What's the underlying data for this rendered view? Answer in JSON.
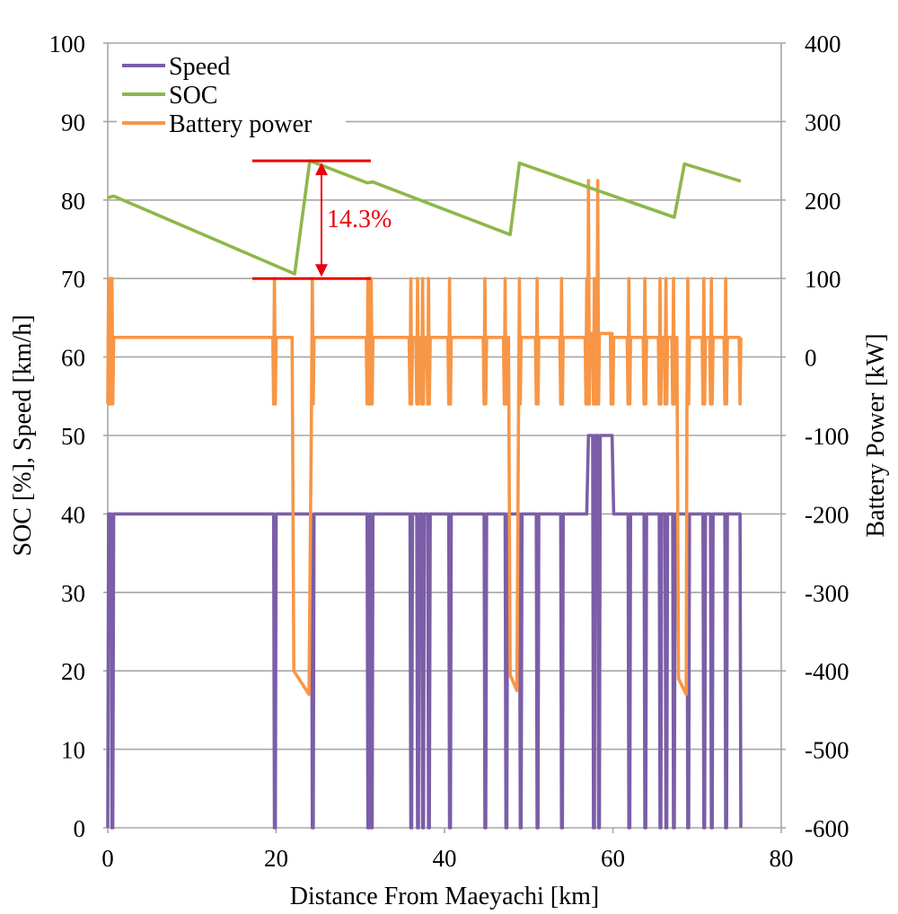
{
  "chart_data": {
    "type": "line",
    "xlabel": "Distance From Maeyachi [km]",
    "ylabel_left": "SOC [%], Speed [km/h]",
    "ylabel_right": "Battery Power [kW]",
    "xlim": [
      0,
      80
    ],
    "ylim_left": [
      0,
      100
    ],
    "ylim_right": [
      -600,
      400
    ],
    "x_ticks": [
      "0",
      "20",
      "40",
      "60",
      "80"
    ],
    "y_left_ticks": [
      "0",
      "10",
      "20",
      "30",
      "40",
      "50",
      "60",
      "70",
      "80",
      "90",
      "100"
    ],
    "y_right_ticks": [
      "-600",
      "-500",
      "-400",
      "-300",
      "-200",
      "-100",
      "0",
      "100",
      "200",
      "300",
      "400"
    ],
    "grid": "horizontal",
    "legend_position": "top-left",
    "colors": {
      "speed": "#7b5ea7",
      "soc": "#8db84a",
      "battery": "#f79646",
      "annotation": "#e8000b",
      "grid": "#a6a6a6"
    },
    "series": [
      {
        "name": "Speed",
        "axis": "left",
        "points": [
          [
            0,
            0
          ],
          [
            0.1,
            40
          ],
          [
            0.4,
            40
          ],
          [
            0.5,
            0
          ],
          [
            0.6,
            0
          ],
          [
            0.7,
            40
          ],
          [
            19.7,
            40
          ],
          [
            19.8,
            0
          ],
          [
            19.9,
            0
          ],
          [
            20.0,
            40
          ],
          [
            24.2,
            40
          ],
          [
            24.3,
            0
          ],
          [
            24.4,
            0
          ],
          [
            24.5,
            40
          ],
          [
            30.8,
            40
          ],
          [
            30.9,
            0
          ],
          [
            31.0,
            0
          ],
          [
            31.1,
            40
          ],
          [
            31.2,
            40
          ],
          [
            31.3,
            0
          ],
          [
            31.4,
            0
          ],
          [
            31.5,
            40
          ],
          [
            35.9,
            40
          ],
          [
            36.0,
            0
          ],
          [
            36.1,
            0
          ],
          [
            36.2,
            40
          ],
          [
            36.7,
            40
          ],
          [
            36.8,
            0
          ],
          [
            36.9,
            0
          ],
          [
            37.0,
            40
          ],
          [
            37.3,
            40
          ],
          [
            37.4,
            0
          ],
          [
            37.5,
            0
          ],
          [
            37.6,
            40
          ],
          [
            38.0,
            40
          ],
          [
            38.1,
            0
          ],
          [
            38.2,
            0
          ],
          [
            38.3,
            40
          ],
          [
            40.5,
            40
          ],
          [
            40.6,
            0
          ],
          [
            40.7,
            0
          ],
          [
            40.8,
            40
          ],
          [
            44.7,
            40
          ],
          [
            44.8,
            0
          ],
          [
            44.9,
            0
          ],
          [
            45.0,
            40
          ],
          [
            47.2,
            40
          ],
          [
            47.3,
            0
          ],
          [
            47.4,
            0
          ],
          [
            47.5,
            40
          ],
          [
            48.9,
            40
          ],
          [
            49.0,
            0
          ],
          [
            49.1,
            0
          ],
          [
            49.2,
            40
          ],
          [
            50.9,
            40
          ],
          [
            51.0,
            0
          ],
          [
            51.1,
            0
          ],
          [
            51.2,
            40
          ],
          [
            53.8,
            40
          ],
          [
            53.9,
            0
          ],
          [
            54.0,
            0
          ],
          [
            54.1,
            40
          ],
          [
            56.9,
            40
          ],
          [
            57.1,
            50
          ],
          [
            57.6,
            50
          ],
          [
            57.7,
            0
          ],
          [
            57.8,
            0
          ],
          [
            57.9,
            50
          ],
          [
            58.2,
            50
          ],
          [
            58.3,
            0
          ],
          [
            58.4,
            0
          ],
          [
            58.5,
            50
          ],
          [
            59.9,
            50
          ],
          [
            60.1,
            40
          ],
          [
            61.8,
            40
          ],
          [
            61.9,
            0
          ],
          [
            62.0,
            0
          ],
          [
            62.1,
            40
          ],
          [
            63.7,
            40
          ],
          [
            63.8,
            0
          ],
          [
            63.9,
            0
          ],
          [
            64.0,
            40
          ],
          [
            65.5,
            40
          ],
          [
            65.6,
            0
          ],
          [
            65.7,
            0
          ],
          [
            65.8,
            40
          ],
          [
            66.2,
            40
          ],
          [
            66.3,
            0
          ],
          [
            66.4,
            0
          ],
          [
            66.5,
            40
          ],
          [
            67.1,
            40
          ],
          [
            67.2,
            0
          ],
          [
            67.3,
            0
          ],
          [
            67.4,
            40
          ],
          [
            68.8,
            40
          ],
          [
            68.9,
            0
          ],
          [
            69.0,
            0
          ],
          [
            69.1,
            40
          ],
          [
            70.7,
            40
          ],
          [
            70.8,
            0
          ],
          [
            70.9,
            0
          ],
          [
            71.0,
            40
          ],
          [
            71.6,
            40
          ],
          [
            71.7,
            0
          ],
          [
            71.8,
            0
          ],
          [
            71.9,
            40
          ],
          [
            73.3,
            40
          ],
          [
            73.4,
            0
          ],
          [
            73.5,
            0
          ],
          [
            73.6,
            40
          ],
          [
            75.1,
            40
          ],
          [
            75.2,
            0
          ]
        ]
      },
      {
        "name": "SOC",
        "axis": "left",
        "points": [
          [
            0,
            80.3
          ],
          [
            0.7,
            80.5
          ],
          [
            22.2,
            70.6
          ],
          [
            24.0,
            85.0
          ],
          [
            30.8,
            82.2
          ],
          [
            31.5,
            82.3
          ],
          [
            47.8,
            75.6
          ],
          [
            48.9,
            84.7
          ],
          [
            67.3,
            77.8
          ],
          [
            68.5,
            84.6
          ],
          [
            75.2,
            82.4
          ]
        ]
      },
      {
        "name": "Battery power",
        "axis": "right",
        "points": [
          [
            0.0,
            -60
          ],
          [
            0.1,
            100
          ],
          [
            0.2,
            -60
          ],
          [
            0.3,
            100
          ],
          [
            0.4,
            -60
          ],
          [
            0.5,
            100
          ],
          [
            0.6,
            -60
          ],
          [
            0.7,
            25
          ],
          [
            19.6,
            25
          ],
          [
            19.7,
            -60
          ],
          [
            19.8,
            100
          ],
          [
            19.9,
            -60
          ],
          [
            20.0,
            25
          ],
          [
            21.9,
            25
          ],
          [
            22.1,
            -400
          ],
          [
            23.9,
            -430
          ],
          [
            24.2,
            -60
          ],
          [
            24.3,
            100
          ],
          [
            24.4,
            -60
          ],
          [
            24.5,
            25
          ],
          [
            30.7,
            25
          ],
          [
            30.8,
            -60
          ],
          [
            30.9,
            100
          ],
          [
            31.0,
            -60
          ],
          [
            31.1,
            100
          ],
          [
            31.2,
            -60
          ],
          [
            31.3,
            100
          ],
          [
            31.4,
            -60
          ],
          [
            31.5,
            25
          ],
          [
            35.8,
            25
          ],
          [
            35.9,
            -60
          ],
          [
            36.0,
            100
          ],
          [
            36.1,
            -60
          ],
          [
            36.2,
            25
          ],
          [
            36.6,
            25
          ],
          [
            36.7,
            -60
          ],
          [
            36.8,
            100
          ],
          [
            36.9,
            -60
          ],
          [
            37.0,
            25
          ],
          [
            37.2,
            25
          ],
          [
            37.3,
            -60
          ],
          [
            37.4,
            100
          ],
          [
            37.5,
            -60
          ],
          [
            37.6,
            25
          ],
          [
            37.9,
            25
          ],
          [
            38.0,
            -60
          ],
          [
            38.1,
            100
          ],
          [
            38.2,
            -60
          ],
          [
            38.3,
            25
          ],
          [
            40.4,
            25
          ],
          [
            40.5,
            -60
          ],
          [
            40.6,
            100
          ],
          [
            40.7,
            -60
          ],
          [
            40.8,
            25
          ],
          [
            44.6,
            25
          ],
          [
            44.7,
            -60
          ],
          [
            44.8,
            100
          ],
          [
            44.9,
            -60
          ],
          [
            45.0,
            25
          ],
          [
            47.0,
            25
          ],
          [
            47.1,
            -60
          ],
          [
            47.2,
            100
          ],
          [
            47.3,
            -60
          ],
          [
            47.5,
            25
          ],
          [
            47.6,
            25
          ],
          [
            47.8,
            -405
          ],
          [
            48.6,
            -425
          ],
          [
            48.8,
            -60
          ],
          [
            48.9,
            100
          ],
          [
            49.0,
            -60
          ],
          [
            49.1,
            25
          ],
          [
            50.8,
            25
          ],
          [
            50.9,
            -60
          ],
          [
            51.0,
            100
          ],
          [
            51.1,
            -60
          ],
          [
            51.2,
            25
          ],
          [
            53.7,
            25
          ],
          [
            53.8,
            -60
          ],
          [
            53.9,
            100
          ],
          [
            54.0,
            -60
          ],
          [
            54.1,
            25
          ],
          [
            56.7,
            25
          ],
          [
            56.8,
            -60
          ],
          [
            56.9,
            100
          ],
          [
            57.0,
            -60
          ],
          [
            57.1,
            225
          ],
          [
            57.2,
            -60
          ],
          [
            57.3,
            30
          ],
          [
            57.6,
            30
          ],
          [
            57.7,
            -60
          ],
          [
            57.8,
            100
          ],
          [
            57.9,
            -60
          ],
          [
            58.0,
            30
          ],
          [
            58.1,
            -60
          ],
          [
            58.2,
            225
          ],
          [
            58.3,
            -60
          ],
          [
            58.4,
            30
          ],
          [
            59.7,
            30
          ],
          [
            59.8,
            -60
          ],
          [
            59.9,
            30
          ],
          [
            60.0,
            -60
          ],
          [
            60.1,
            25
          ],
          [
            61.7,
            25
          ],
          [
            61.8,
            -60
          ],
          [
            61.9,
            100
          ],
          [
            62.0,
            -60
          ],
          [
            62.1,
            25
          ],
          [
            63.6,
            25
          ],
          [
            63.7,
            -60
          ],
          [
            63.8,
            100
          ],
          [
            63.9,
            -60
          ],
          [
            64.0,
            25
          ],
          [
            65.4,
            25
          ],
          [
            65.5,
            -60
          ],
          [
            65.6,
            100
          ],
          [
            65.7,
            -60
          ],
          [
            65.8,
            25
          ],
          [
            66.1,
            25
          ],
          [
            66.2,
            -60
          ],
          [
            66.3,
            100
          ],
          [
            66.4,
            -60
          ],
          [
            66.5,
            25
          ],
          [
            67.0,
            25
          ],
          [
            67.1,
            -60
          ],
          [
            67.2,
            100
          ],
          [
            67.3,
            -60
          ],
          [
            67.5,
            25
          ],
          [
            67.6,
            25
          ],
          [
            67.8,
            -410
          ],
          [
            68.7,
            -430
          ],
          [
            68.8,
            -60
          ],
          [
            68.9,
            100
          ],
          [
            69.0,
            -60
          ],
          [
            69.1,
            25
          ],
          [
            70.6,
            25
          ],
          [
            70.7,
            -60
          ],
          [
            70.8,
            100
          ],
          [
            70.9,
            -60
          ],
          [
            71.0,
            25
          ],
          [
            71.5,
            25
          ],
          [
            71.6,
            -60
          ],
          [
            71.7,
            100
          ],
          [
            71.8,
            -60
          ],
          [
            71.9,
            25
          ],
          [
            73.2,
            25
          ],
          [
            73.3,
            -60
          ],
          [
            73.4,
            100
          ],
          [
            73.5,
            -60
          ],
          [
            73.6,
            25
          ],
          [
            75.0,
            25
          ],
          [
            75.1,
            -60
          ],
          [
            75.2,
            25
          ]
        ]
      }
    ],
    "annotations": [
      {
        "text": "14.3%",
        "x": 25.0,
        "y_left": 77.7
      }
    ]
  }
}
